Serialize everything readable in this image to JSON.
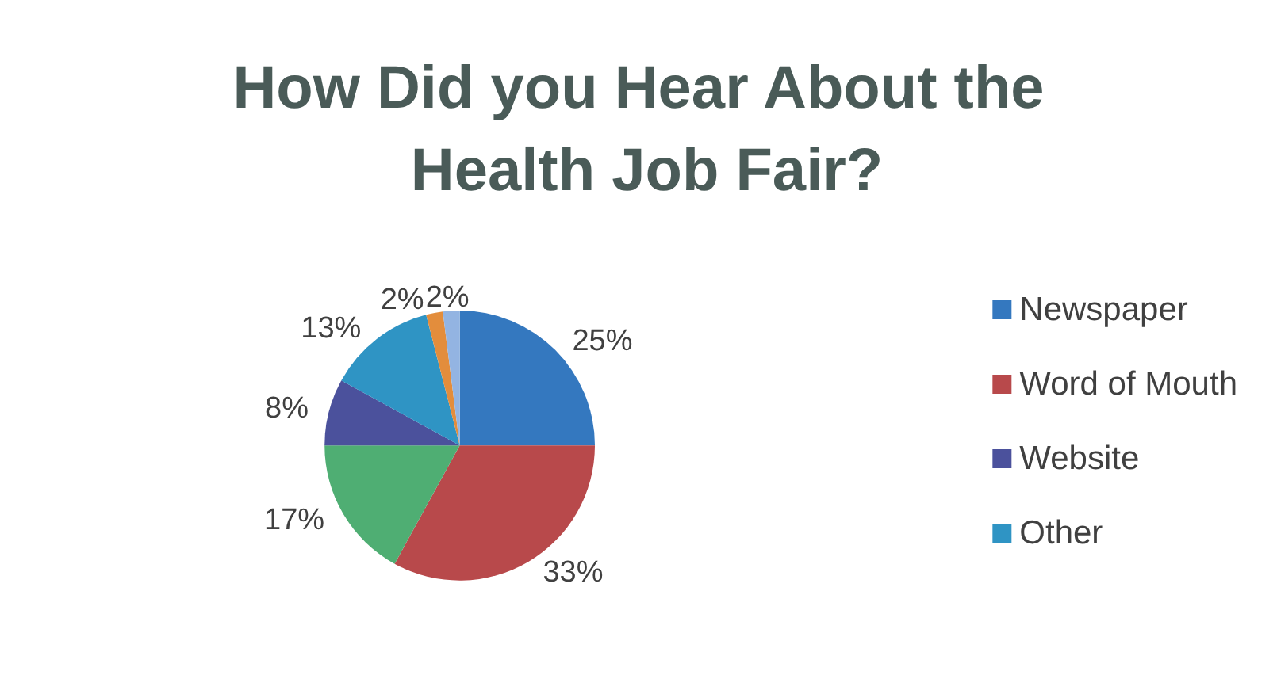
{
  "chart_data": {
    "type": "pie",
    "title": "How Did you Hear About the Health Job Fair?",
    "categories": [
      "Newspaper",
      "Word of Mouth",
      null,
      "Website",
      "Other",
      null,
      null
    ],
    "values": [
      25,
      33,
      17,
      8,
      13,
      2,
      2
    ],
    "value_labels": [
      "25%",
      "33%",
      "17%",
      "8%",
      "13%",
      "2%",
      "2%"
    ],
    "colors": [
      "#3478bf",
      "#b8494b",
      "#4fae73",
      "#4b519c",
      "#2f94c4",
      "#e38d3c",
      "#93b4e2"
    ],
    "legend": "right"
  }
}
